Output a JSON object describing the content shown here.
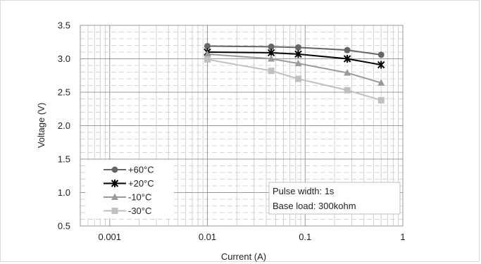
{
  "chart_data": {
    "type": "line",
    "title": "",
    "xlabel": "Current (A)",
    "ylabel": "Voltage (V)",
    "xscale": "log",
    "xlim": [
      0.0005,
      1
    ],
    "ylim": [
      0.5,
      3.5
    ],
    "x_ticks": [
      {
        "value": 0.001,
        "label": "0.001"
      },
      {
        "value": 0.01,
        "label": "0.01"
      },
      {
        "value": 0.1,
        "label": "0.1"
      },
      {
        "value": 1,
        "label": "1"
      }
    ],
    "y_ticks": [
      {
        "value": 0.5,
        "label": "0.5"
      },
      {
        "value": 1.0,
        "label": "1.0"
      },
      {
        "value": 1.5,
        "label": "1.5"
      },
      {
        "value": 2.0,
        "label": "2.0"
      },
      {
        "value": 2.5,
        "label": "2.5"
      },
      {
        "value": 3.0,
        "label": "3.0"
      },
      {
        "value": 3.5,
        "label": "3.5"
      }
    ],
    "grid": true,
    "legend_position": "bottom-left",
    "x": [
      0.01,
      0.045,
      0.085,
      0.27,
      0.6
    ],
    "series": [
      {
        "name": "+60°C",
        "marker": "circle",
        "color": "#666666",
        "values": [
          3.19,
          3.18,
          3.17,
          3.13,
          3.06
        ]
      },
      {
        "name": "+20°C",
        "marker": "star",
        "color": "#000000",
        "values": [
          3.1,
          3.09,
          3.07,
          3.0,
          2.91
        ]
      },
      {
        "name": "-10°C",
        "marker": "triangle",
        "color": "#9a9a9a",
        "values": [
          3.07,
          3.0,
          2.93,
          2.79,
          2.64
        ]
      },
      {
        "name": "-30°C",
        "marker": "square",
        "color": "#c0c0c0",
        "values": [
          2.99,
          2.82,
          2.7,
          2.53,
          2.38
        ]
      }
    ],
    "annotation": {
      "line1": "Pulse width: 1s",
      "line2": "Base load: 300kohm"
    }
  }
}
